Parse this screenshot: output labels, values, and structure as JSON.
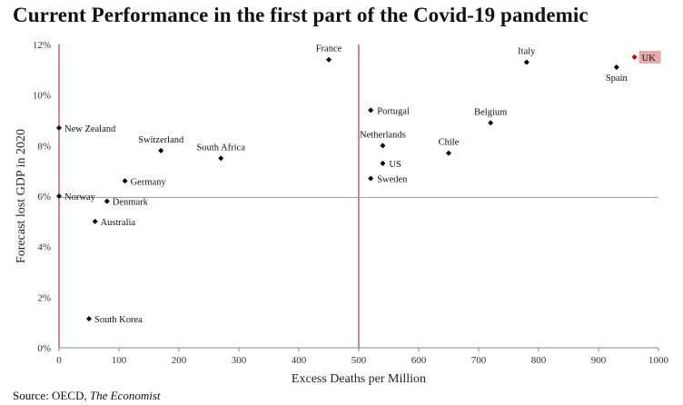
{
  "title": "Current Performance in the first part of the Covid-19 pandemic",
  "source": {
    "prefix": "Source: OECD, ",
    "publication": "The Economist"
  },
  "colors": {
    "point": "#000000",
    "highlight": "#c00000",
    "highlight_bg": "#e8a9a9",
    "reference_line": "#a0112a",
    "axis": "#888888"
  },
  "chart_data": {
    "type": "scatter",
    "title": "Current Performance in the first part of the Covid-19 pandemic",
    "xlabel": "Excess Deaths per Million",
    "ylabel": "Forecast lost GDP in 2020",
    "xlim": [
      0,
      1000
    ],
    "ylim": [
      0,
      12
    ],
    "xticks": [
      "0",
      "100",
      "200",
      "300",
      "400",
      "500",
      "600",
      "700",
      "800",
      "900",
      "1000"
    ],
    "yticks": [
      "0%",
      "2%",
      "4%",
      "6%",
      "8%",
      "10%",
      "12%"
    ],
    "grid": false,
    "reference_lines": {
      "x": 500,
      "y": 5.95,
      "x_at_zero": 0
    },
    "points": [
      {
        "label": "New Zealand",
        "x": 0,
        "y": 8.7
      },
      {
        "label": "Norway",
        "x": 0,
        "y": 6.0
      },
      {
        "label": "South Korea",
        "x": 50,
        "y": 1.15
      },
      {
        "label": "Australia",
        "x": 60,
        "y": 5.0
      },
      {
        "label": "Denmark",
        "x": 80,
        "y": 5.8
      },
      {
        "label": "Germany",
        "x": 110,
        "y": 6.6
      },
      {
        "label": "Switzerland",
        "x": 170,
        "y": 7.8
      },
      {
        "label": "South Africa",
        "x": 270,
        "y": 7.5
      },
      {
        "label": "France",
        "x": 450,
        "y": 11.4
      },
      {
        "label": "Portugal",
        "x": 520,
        "y": 9.4
      },
      {
        "label": "Sweden",
        "x": 520,
        "y": 6.7
      },
      {
        "label": "Netherlands",
        "x": 540,
        "y": 8.0
      },
      {
        "label": "US",
        "x": 540,
        "y": 7.3
      },
      {
        "label": "Chile",
        "x": 650,
        "y": 7.7
      },
      {
        "label": "Belgium",
        "x": 720,
        "y": 8.9
      },
      {
        "label": "Italy",
        "x": 780,
        "y": 11.3
      },
      {
        "label": "Spain",
        "x": 930,
        "y": 11.1
      },
      {
        "label": "UK",
        "x": 960,
        "y": 11.5,
        "highlight": true
      }
    ]
  }
}
